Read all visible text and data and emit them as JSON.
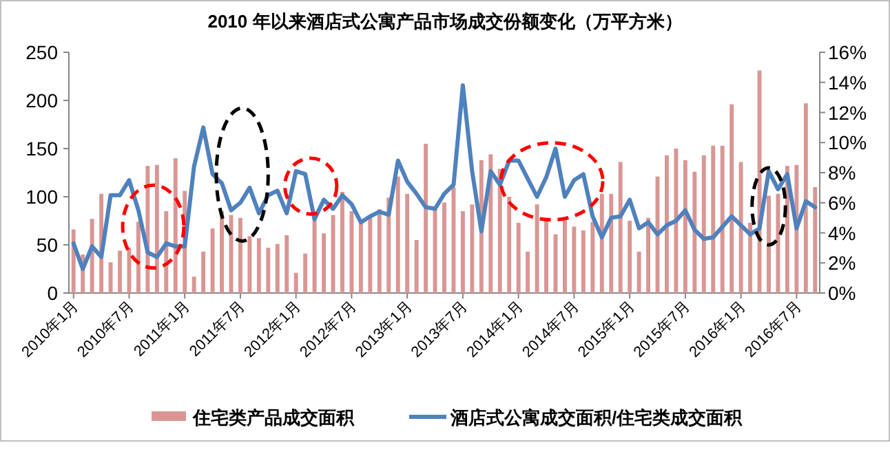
{
  "chart_data": {
    "type": "bar",
    "title": "2010 年以来酒店式公寓产品市场成交份额变化（万平方米）",
    "categories": [
      "2010年1月",
      null,
      null,
      null,
      null,
      null,
      "2010年7月",
      null,
      null,
      null,
      null,
      null,
      "2011年1月",
      null,
      null,
      null,
      null,
      null,
      "2011年7月",
      null,
      null,
      null,
      null,
      null,
      "2012年1月",
      null,
      null,
      null,
      null,
      null,
      "2012年7月",
      null,
      null,
      null,
      null,
      null,
      "2013年1月",
      null,
      null,
      null,
      null,
      null,
      "2013年7月",
      null,
      null,
      null,
      null,
      null,
      "2014年1月",
      null,
      null,
      null,
      null,
      null,
      "2014年7月",
      null,
      null,
      null,
      null,
      null,
      "2015年1月",
      null,
      null,
      null,
      null,
      null,
      "2015年7月",
      null,
      null,
      null,
      null,
      null,
      "2016年1月",
      null,
      null,
      null,
      null,
      null,
      "2016年7月",
      null,
      null
    ],
    "series": [
      {
        "name": "住宅类产品成交面积",
        "color": "#d99694",
        "values": [
          66,
          40,
          77,
          103,
          32,
          44,
          47,
          74,
          132,
          133,
          85,
          140,
          106,
          17,
          43,
          67,
          85,
          81,
          78,
          59,
          57,
          47,
          51,
          60,
          21,
          41,
          77,
          62,
          81,
          105,
          85,
          74,
          80,
          87,
          99,
          121,
          103,
          55,
          155,
          87,
          94,
          110,
          85,
          92,
          138,
          144,
          129,
          100,
          73,
          43,
          92,
          77,
          61,
          77,
          69,
          65,
          74,
          103,
          103,
          136,
          75,
          43,
          78,
          121,
          143,
          150,
          138,
          126,
          143,
          153,
          153,
          196,
          136,
          73,
          231,
          101,
          103,
          132,
          133,
          197,
          110
        ]
      },
      {
        "name": "酒店式公寓成交面积/住宅类成交面积",
        "type": "line",
        "axis": "y2",
        "color": "#4f81bd",
        "values": [
          3.3,
          1.6,
          3.1,
          2.4,
          6.5,
          6.5,
          7.5,
          5.5,
          2.7,
          2.4,
          3.3,
          3.1,
          3.1,
          8.4,
          11.0,
          7.9,
          7.3,
          5.5,
          6.0,
          7.0,
          5.3,
          6.5,
          6.8,
          5.3,
          8.1,
          7.9,
          4.9,
          6.2,
          5.6,
          6.5,
          5.9,
          4.7,
          5.1,
          5.4,
          5.2,
          8.8,
          7.4,
          6.6,
          5.7,
          5.6,
          6.6,
          7.2,
          13.8,
          8.1,
          4.1,
          8.1,
          7.2,
          8.8,
          8.8,
          7.6,
          6.4,
          7.7,
          9.6,
          6.4,
          7.5,
          7.9,
          5.1,
          3.7,
          5.0,
          5.1,
          6.2,
          4.3,
          4.7,
          3.9,
          4.5,
          4.8,
          5.5,
          4.2,
          3.6,
          3.7,
          4.4,
          5.1,
          4.5,
          3.9,
          4.3,
          8.1,
          6.9,
          7.9,
          4.3,
          6.1,
          5.7
        ]
      }
    ],
    "ylim": [
      0,
      250
    ],
    "yticks": [
      0,
      50,
      100,
      150,
      200,
      250
    ],
    "y2lim": [
      0,
      16
    ],
    "y2ticks": [
      {
        "value": 0,
        "label": "0%"
      },
      {
        "value": 2,
        "label": "2%"
      },
      {
        "value": 4,
        "label": "4%"
      },
      {
        "value": 6,
        "label": "6%"
      },
      {
        "value": 8,
        "label": "8%"
      },
      {
        "value": 10,
        "label": "10%"
      },
      {
        "value": 12,
        "label": "12%"
      },
      {
        "value": 14,
        "label": "14%"
      },
      {
        "value": 16,
        "label": "16%"
      }
    ],
    "legend": "bottom",
    "grid": false
  }
}
